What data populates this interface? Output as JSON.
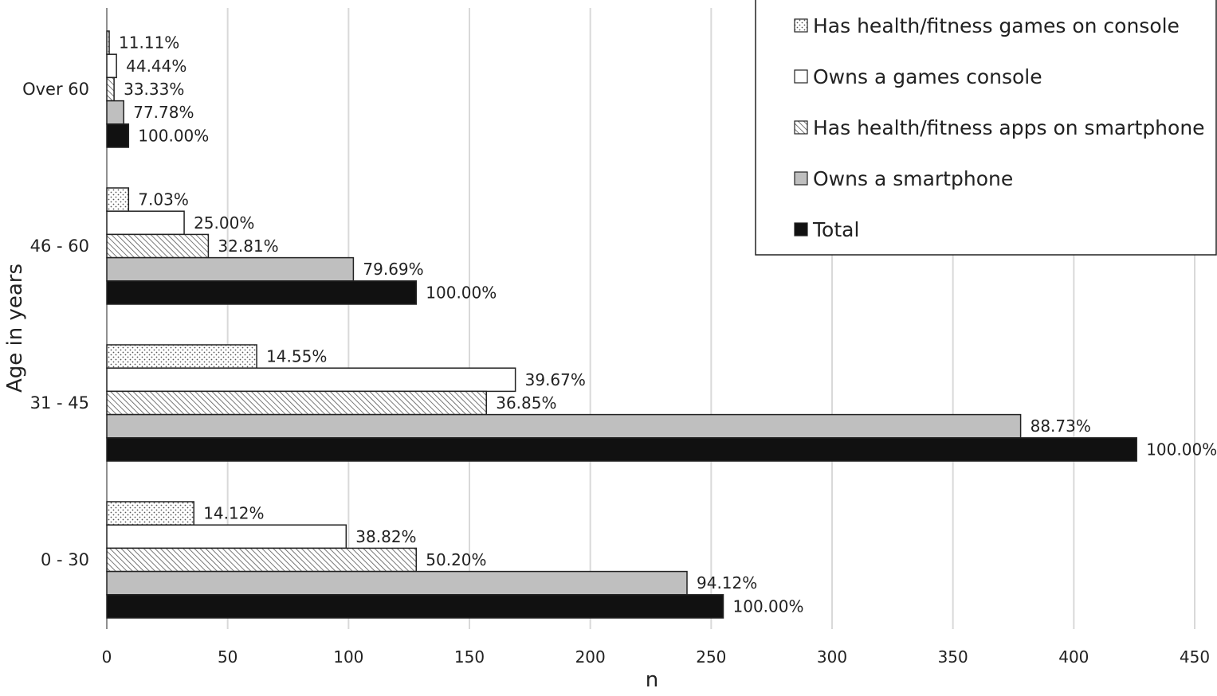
{
  "chart_data": {
    "type": "bar",
    "orientation": "horizontal",
    "title": "",
    "xlabel": "n",
    "ylabel": "Age in years",
    "xlim": [
      0,
      450
    ],
    "x_ticks": [
      "0",
      "50",
      "100",
      "150",
      "200",
      "250",
      "300",
      "350",
      "400",
      "450"
    ],
    "grid": "vertical",
    "legend_position": "top-right",
    "categories": [
      "Over 60",
      "46 - 60",
      "31 - 45",
      "0 - 30"
    ],
    "series": [
      {
        "name": "Has health/fitness games on console",
        "fill": "dots",
        "color": "#ffffff",
        "values": [
          1,
          9,
          62,
          36
        ],
        "labels": [
          "11.11%",
          "7.03%",
          "14.55%",
          "14.12%"
        ]
      },
      {
        "name": "Owns a games console",
        "fill": "solid",
        "color": "#ffffff",
        "values": [
          4,
          32,
          169,
          99
        ],
        "labels": [
          "44.44%",
          "25.00%",
          "39.67%",
          "38.82%"
        ]
      },
      {
        "name": "Has health/fitness apps on smartphone",
        "fill": "hatch",
        "color": "#ffffff",
        "values": [
          3,
          42,
          157,
          128
        ],
        "labels": [
          "33.33%",
          "32.81%",
          "36.85%",
          "50.20%"
        ]
      },
      {
        "name": "Owns a smartphone",
        "fill": "solid",
        "color": "#bfbfbf",
        "values": [
          7,
          102,
          378,
          240
        ],
        "labels": [
          "77.78%",
          "79.69%",
          "88.73%",
          "94.12%"
        ]
      },
      {
        "name": "Total",
        "fill": "solid",
        "color": "#111111",
        "values": [
          9,
          128,
          426,
          255
        ],
        "labels": [
          "100.00%",
          "100.00%",
          "100.00%",
          "100.00%"
        ]
      }
    ]
  }
}
